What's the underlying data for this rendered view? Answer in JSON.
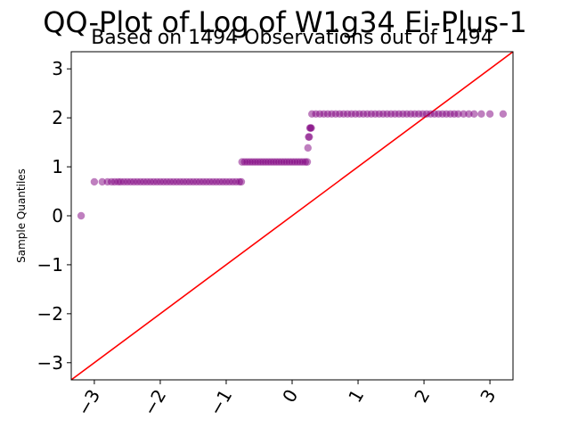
{
  "chart_data": {
    "type": "scatter",
    "title": "QQ-Plot of Log of W1g34 Ei-Plus-1",
    "subtitle": "Based on 1494 Observations out of 1494",
    "xlabel": "",
    "ylabel": "Sample Quantiles",
    "xlim": [
      -3.35,
      3.35
    ],
    "ylim": [
      -3.35,
      3.35
    ],
    "x_ticks": [
      -3,
      -2,
      -1,
      0,
      1,
      2,
      3
    ],
    "y_ticks": [
      -3,
      -2,
      -1,
      0,
      1,
      2,
      3
    ],
    "x_tick_labels": [
      "−3",
      "−2",
      "−1",
      "0",
      "1",
      "2",
      "3"
    ],
    "y_tick_labels": [
      "−3",
      "−2",
      "−1",
      "0",
      "1",
      "2",
      "3"
    ],
    "grid": false,
    "point_color": "#800080",
    "reference_line_color": "#ff0000",
    "reference_line": {
      "slope": 1,
      "intercept": 0
    },
    "series": [
      {
        "type": "scatter",
        "segments": [
          {
            "y": 0.0,
            "x": [
              -3.2
            ]
          },
          {
            "y": 0.693,
            "x": [
              -3.0,
              -2.88,
              -2.8,
              -2.74,
              -2.69,
              -2.64,
              -2.6,
              -2.55,
              -2.5,
              -2.45,
              -2.4,
              -2.35,
              -2.3,
              -2.25,
              -2.2,
              -2.15,
              -2.1,
              -2.05,
              -2.0,
              -1.95,
              -1.9,
              -1.85,
              -1.8,
              -1.75,
              -1.7,
              -1.65,
              -1.6,
              -1.55,
              -1.5,
              -1.45,
              -1.4,
              -1.35,
              -1.3,
              -1.25,
              -1.2,
              -1.15,
              -1.1,
              -1.05,
              -1.0,
              -0.95,
              -0.9,
              -0.85,
              -0.8,
              -0.77
            ]
          },
          {
            "y": 1.099,
            "x": [
              -0.76,
              -0.72,
              -0.68,
              -0.64,
              -0.6,
              -0.56,
              -0.52,
              -0.48,
              -0.44,
              -0.4,
              -0.36,
              -0.32,
              -0.28,
              -0.24,
              -0.2,
              -0.16,
              -0.12,
              -0.08,
              -0.04,
              0.0,
              0.04,
              0.08,
              0.12,
              0.16,
              0.2,
              0.23
            ]
          },
          {
            "y": 1.386,
            "x": [
              0.24
            ]
          },
          {
            "y": 1.609,
            "x": [
              0.25,
              0.26
            ]
          },
          {
            "y": 1.792,
            "x": [
              0.27,
              0.28,
              0.29
            ]
          },
          {
            "y": 2.079,
            "x": [
              0.3,
              0.36,
              0.42,
              0.48,
              0.54,
              0.6,
              0.66,
              0.72,
              0.78,
              0.84,
              0.9,
              0.96,
              1.02,
              1.08,
              1.14,
              1.2,
              1.26,
              1.32,
              1.38,
              1.44,
              1.5,
              1.56,
              1.62,
              1.68,
              1.74,
              1.8,
              1.86,
              1.92,
              1.98,
              2.04,
              2.1,
              2.16,
              2.22,
              2.28,
              2.34,
              2.4,
              2.46,
              2.52,
              2.6,
              2.68,
              2.76,
              2.87,
              3.0,
              3.2
            ]
          }
        ]
      }
    ]
  }
}
